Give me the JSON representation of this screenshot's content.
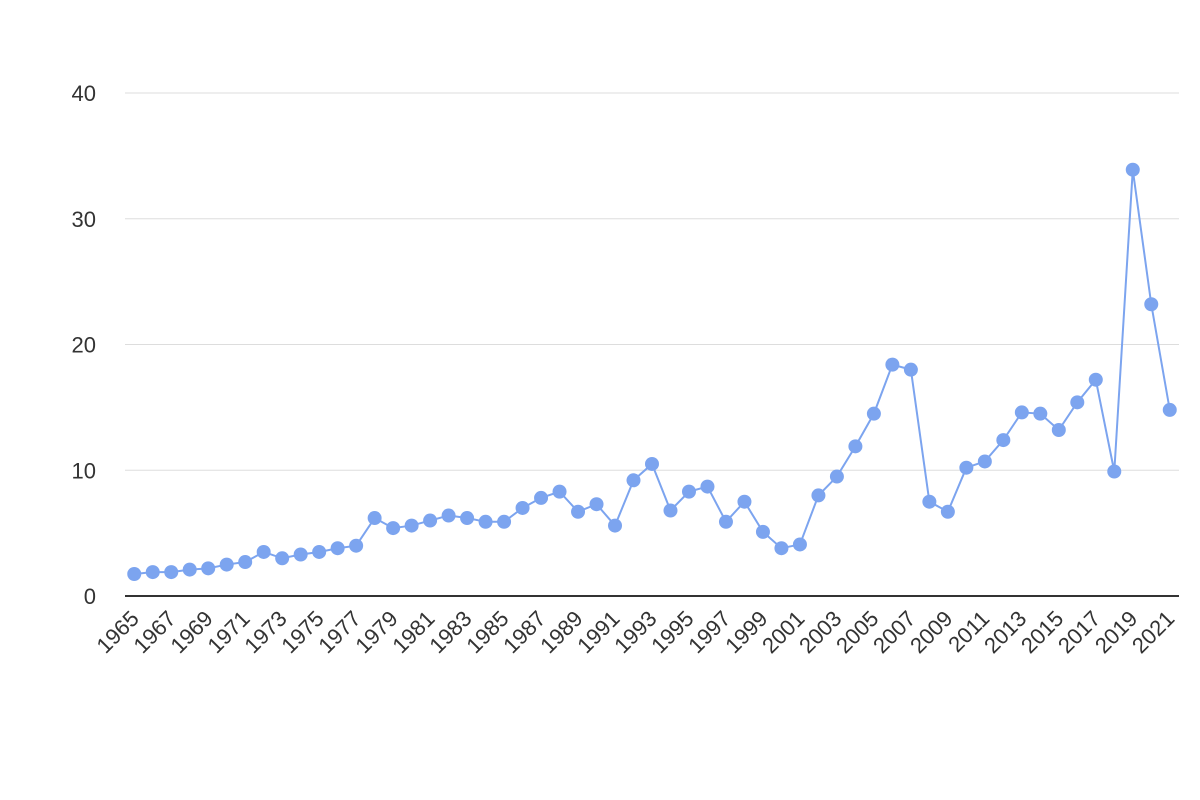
{
  "chart_data": {
    "type": "line",
    "categories": [
      "1965",
      null,
      "1967",
      null,
      "1969",
      null,
      "1971",
      null,
      "1973",
      null,
      "1975",
      null,
      "1977",
      null,
      "1979",
      null,
      "1981",
      null,
      "1983",
      null,
      "1985",
      null,
      "1987",
      null,
      "1989",
      null,
      "1991",
      null,
      "1993",
      null,
      "1995",
      null,
      "1997",
      null,
      "1999",
      null,
      "2001",
      null,
      "2003",
      null,
      "2005",
      null,
      "2007",
      null,
      "2009",
      null,
      "2011",
      null,
      "2013",
      null,
      "2015",
      null,
      "2017",
      null,
      "2019",
      null,
      "2021"
    ],
    "series": [
      {
        "color": "#7ca4ef",
        "values": [
          1.75,
          1.9,
          1.9,
          2.1,
          2.2,
          2.5,
          2.7,
          3.5,
          3.0,
          3.3,
          3.5,
          3.8,
          4.0,
          6.2,
          5.4,
          5.6,
          6.0,
          6.4,
          6.2,
          5.9,
          5.9,
          7.0,
          7.8,
          8.3,
          6.7,
          7.3,
          5.6,
          9.2,
          10.5,
          6.8,
          8.3,
          8.7,
          5.9,
          7.5,
          5.1,
          3.8,
          4.1,
          8.0,
          9.5,
          11.9,
          14.5,
          18.4,
          18.0,
          7.5,
          6.7,
          10.2,
          10.7,
          12.4,
          14.6,
          14.5,
          13.2,
          15.4,
          17.2,
          9.9,
          33.9,
          23.2,
          14.8
        ]
      }
    ],
    "ylim": [
      0,
      40
    ],
    "yticks": [
      0,
      10,
      20,
      30,
      40
    ],
    "grid": true
  }
}
